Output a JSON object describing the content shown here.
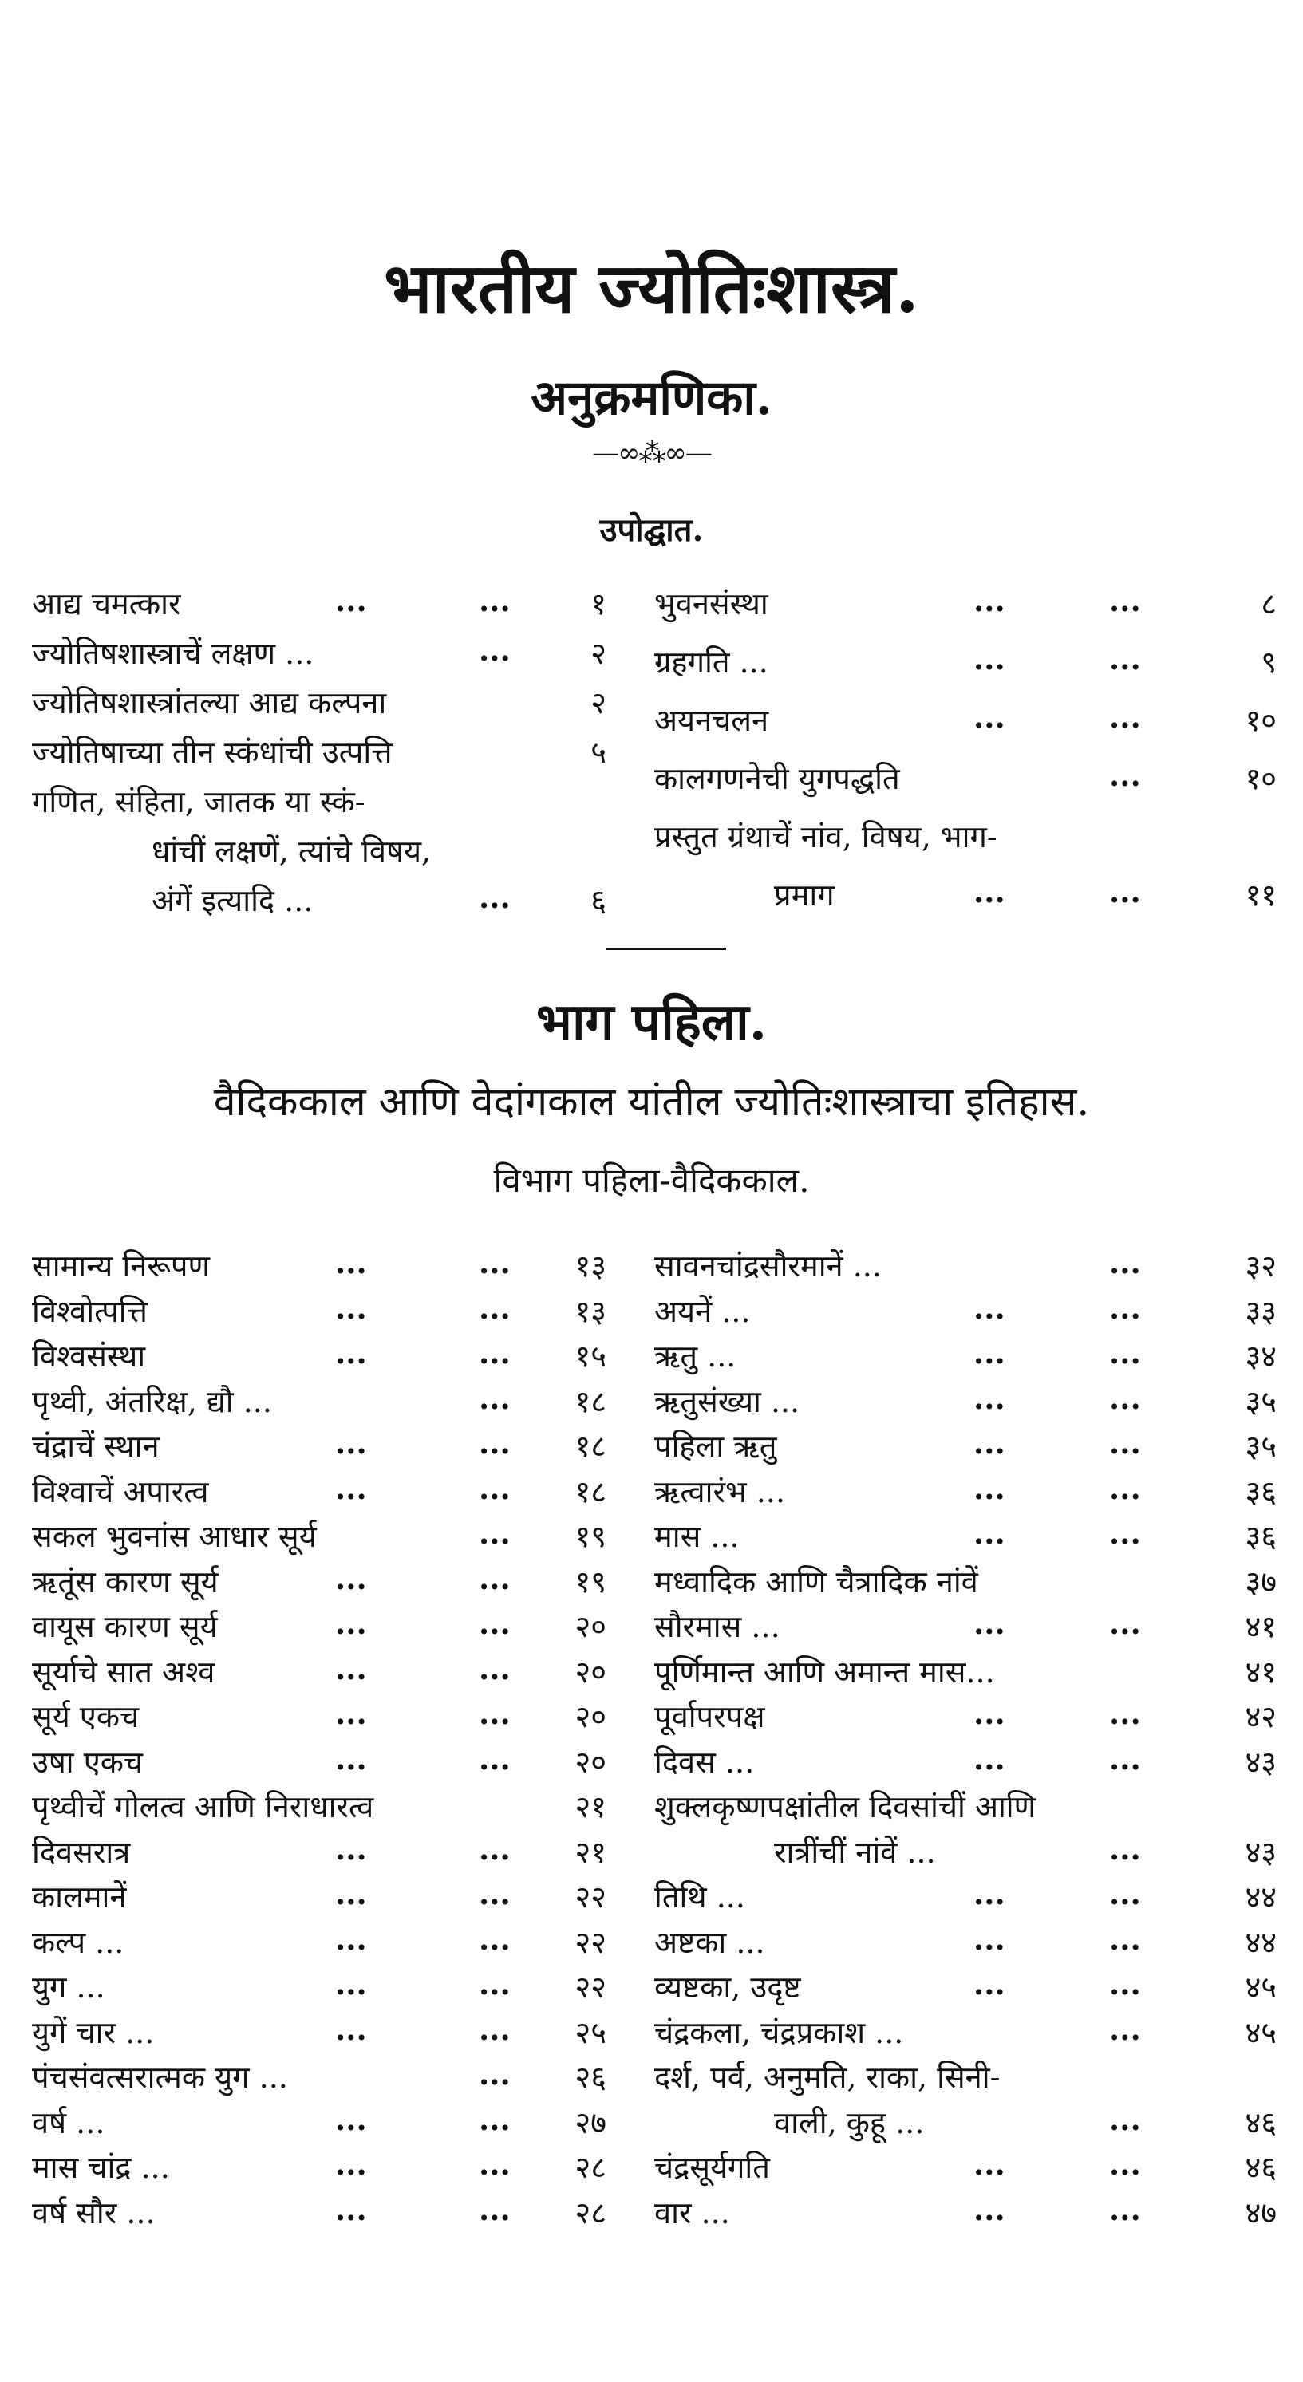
{
  "title": "भारतीय ज्योतिःशास्त्र.",
  "subtitle": "अनुक्रमणिका.",
  "ornament": "—∞⁂∞—",
  "intro": {
    "heading": "उपोद्घात.",
    "left": [
      {
        "text": "आद्य चमत्कार",
        "d1": "...",
        "d2": "...",
        "page": "१"
      },
      {
        "text": "ज्योतिषशास्त्राचें लक्षण ...",
        "d1": "",
        "d2": "...",
        "page": "२"
      },
      {
        "text": "ज्योतिषशास्त्रांतल्या आद्य कल्पना",
        "d1": "",
        "d2": "",
        "page": "२"
      },
      {
        "text": "ज्योतिषाच्या तीन स्कंधांची उत्पत्ति",
        "d1": "",
        "d2": "",
        "page": "५"
      },
      {
        "text": "गणित, संहिता, जातक या स्कं-",
        "d1": "",
        "d2": "",
        "page": ""
      },
      {
        "text": "धांचीं लक्षणें, त्यांचे विषय,",
        "indent": true,
        "d1": "",
        "d2": "",
        "page": ""
      },
      {
        "text": "अंगें इत्यादि ...",
        "indent": true,
        "d1": "",
        "d2": "...",
        "page": "६"
      }
    ],
    "right": [
      {
        "text": "भुवनसंस्था",
        "d1": "...",
        "d2": "...",
        "page": "८"
      },
      {
        "text": "ग्रहगति ...",
        "d1": "...",
        "d2": "...",
        "page": "९"
      },
      {
        "text": "अयनचलन",
        "d1": "...",
        "d2": "...",
        "page": "१०"
      },
      {
        "text": "कालगणनेची युगपद्धति",
        "d1": "",
        "d2": "...",
        "page": "१०"
      },
      {
        "text": "प्रस्तुत ग्रंथाचें नांव, विषय, भाग-",
        "d1": "",
        "d2": "",
        "page": ""
      },
      {
        "text": "प्रमाग",
        "indent": true,
        "d1": "...",
        "d2": "...",
        "page": "११"
      }
    ]
  },
  "part": {
    "title": "भाग पहिला.",
    "subtitle": "वैदिककाल आणि वेदांगकाल यांतील ज्योतिःशास्त्राचा इतिहास.",
    "division": "विभाग पहिला-वैदिककाल.",
    "left": [
      {
        "text": "सामान्य निरूपण",
        "d1": "...",
        "d2": "...",
        "page": "१३"
      },
      {
        "text": "विश्वोत्पत्ति",
        "d1": "...",
        "d2": "...",
        "page": "१३"
      },
      {
        "text": "विश्वसंस्था",
        "d1": "...",
        "d2": "...",
        "page": "१५"
      },
      {
        "text": "पृथ्वी, अंतरिक्ष, द्यौ ...",
        "d1": "",
        "d2": "...",
        "page": "१८"
      },
      {
        "text": "चंद्राचें स्थान",
        "d1": "...",
        "d2": "...",
        "page": "१८"
      },
      {
        "text": "विश्वाचें अपारत्व",
        "d1": "...",
        "d2": "...",
        "page": "१८"
      },
      {
        "text": "सकल भुवनांस आधार सूर्य",
        "d1": "",
        "d2": "...",
        "page": "१९"
      },
      {
        "text": "ऋतूंस कारण सूर्य",
        "d1": "...",
        "d2": "...",
        "page": "१९"
      },
      {
        "text": "वायूस कारण सूर्य",
        "d1": "...",
        "d2": "...",
        "page": "२०"
      },
      {
        "text": "सूर्याचे सात अश्व",
        "d1": "...",
        "d2": "...",
        "page": "२०"
      },
      {
        "text": "सूर्य एकच",
        "d1": "...",
        "d2": "...",
        "page": "२०"
      },
      {
        "text": "उषा एकच",
        "d1": "...",
        "d2": "...",
        "page": "२०"
      },
      {
        "text": "पृथ्वीचें गोलत्व आणि निराधारत्व",
        "d1": "",
        "d2": "",
        "page": "२१"
      },
      {
        "text": "दिवसरात्र",
        "d1": "...",
        "d2": "...",
        "page": "२१"
      },
      {
        "text": "कालमानें",
        "d1": "...",
        "d2": "...",
        "page": "२२"
      },
      {
        "text": "कल्प       ...",
        "d1": "...",
        "d2": "...",
        "page": "२२"
      },
      {
        "text": "युग       ...",
        "d1": "...",
        "d2": "...",
        "page": "२२"
      },
      {
        "text": "युगें चार ...",
        "d1": "...",
        "d2": "...",
        "page": "२५"
      },
      {
        "text": "पंचसंवत्सरात्मक युग ...",
        "d1": "",
        "d2": "...",
        "page": "२६"
      },
      {
        "text": "वर्ष       ...",
        "d1": "...",
        "d2": "...",
        "page": "२७"
      },
      {
        "text": "मास चांद्र ...",
        "d1": "...",
        "d2": "...",
        "page": "२८"
      },
      {
        "text": "वर्ष सौर ...",
        "d1": "...",
        "d2": "...",
        "page": "२८"
      }
    ],
    "right": [
      {
        "text": "सावनचांद्रसौरमानें ...",
        "d1": "",
        "d2": "...",
        "page": "३२"
      },
      {
        "text": "अयनें    ...",
        "d1": "...",
        "d2": "...",
        "page": "३३"
      },
      {
        "text": "ऋतु      ...",
        "d1": "...",
        "d2": "...",
        "page": "३४"
      },
      {
        "text": "ऋतुसंख्या ...",
        "d1": "...",
        "d2": "...",
        "page": "३५"
      },
      {
        "text": "पहिला ऋतु",
        "d1": "...",
        "d2": "...",
        "page": "३५"
      },
      {
        "text": "ऋत्वारंभ ...",
        "d1": "...",
        "d2": "...",
        "page": "३६"
      },
      {
        "text": "मास      ...",
        "d1": "...",
        "d2": "...",
        "page": "३६"
      },
      {
        "text": "मध्वादिक आणि चैत्रादिक नांवें",
        "d1": "",
        "d2": "",
        "page": "३७"
      },
      {
        "text": "सौरमास ...",
        "d1": "...",
        "d2": "...",
        "page": "४१"
      },
      {
        "text": "पूर्णिमान्त आणि अमान्त मास...",
        "d1": "",
        "d2": "",
        "page": "४१"
      },
      {
        "text": "पूर्वापरपक्ष",
        "d1": "...",
        "d2": "...",
        "page": "४२"
      },
      {
        "text": "दिवस ...",
        "d1": "...",
        "d2": "...",
        "page": "४३"
      },
      {
        "text": "शुक्लकृष्णपक्षांतील दिवसांचीं आणि",
        "d1": "",
        "d2": "",
        "page": ""
      },
      {
        "text": "रात्रींचीं नांवें ...",
        "indent": true,
        "d1": "",
        "d2": "...",
        "page": "४३"
      },
      {
        "text": "तिथि      ...",
        "d1": "...",
        "d2": "...",
        "page": "४४"
      },
      {
        "text": "अष्टका    ...",
        "d1": "...",
        "d2": "...",
        "page": "४४"
      },
      {
        "text": "व्यष्टका, उदृष्ट",
        "d1": "...",
        "d2": "...",
        "page": "४५"
      },
      {
        "text": "चंद्रकला, चंद्रप्रकाश ...",
        "d1": "",
        "d2": "...",
        "page": "४५"
      },
      {
        "text": "दर्श, पर्व, अनुमति, राका, सिनी-",
        "d1": "",
        "d2": "",
        "page": ""
      },
      {
        "text": "वाली, कुहू ...",
        "indent": true,
        "d1": "",
        "d2": "...",
        "page": "४६"
      },
      {
        "text": "चंद्रसूर्यगति",
        "d1": "...",
        "d2": "...",
        "page": "४६"
      },
      {
        "text": "वार      ...",
        "d1": "...",
        "d2": "...",
        "page": "४७"
      }
    ]
  }
}
